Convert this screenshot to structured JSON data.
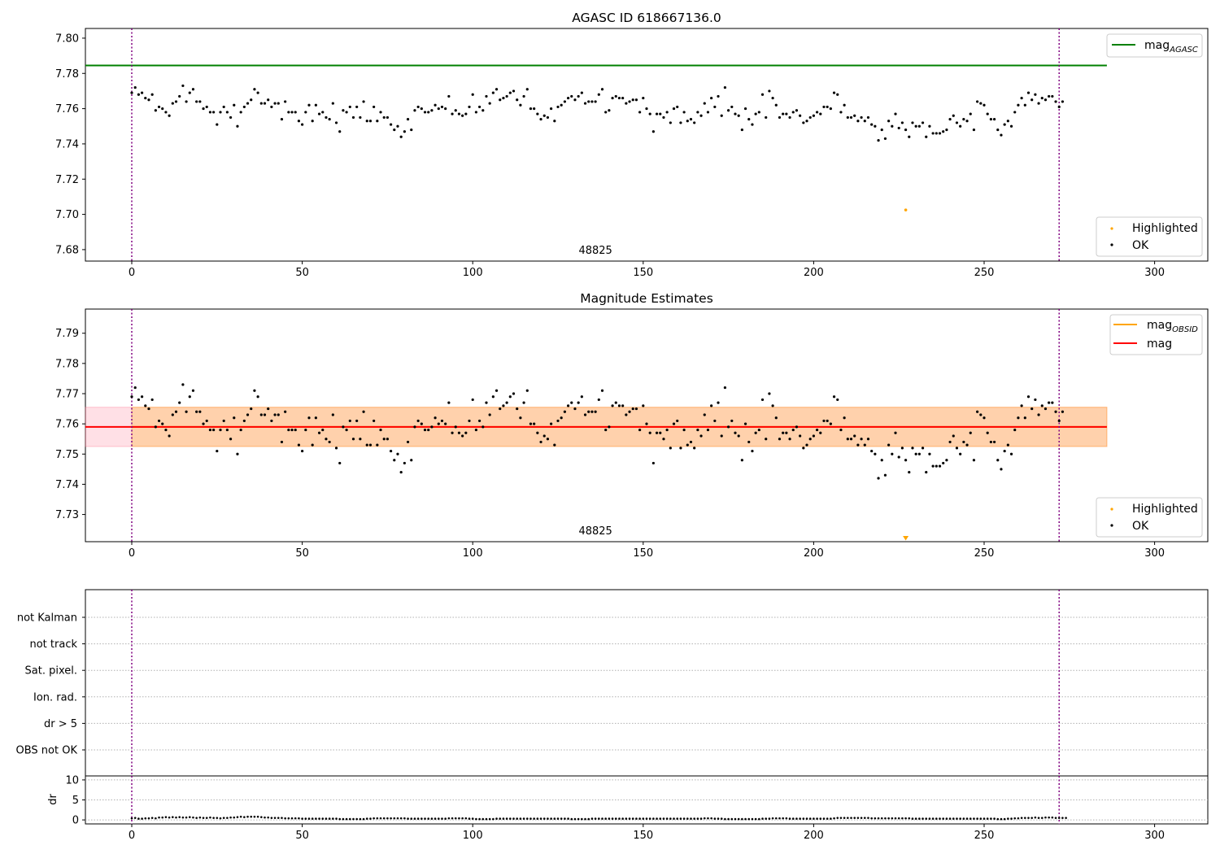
{
  "colors": {
    "agasc_line": "#008000",
    "obsid_line": "#ffa500",
    "mag_line": "#ff0000",
    "obsid_band": "#ffa500",
    "mag_band": "#ff6680",
    "highlighted": "#ffa500",
    "ok": "#000000",
    "obs_boundary": "#800080",
    "flag_grid": "#b0b0b0"
  },
  "chart_data": [
    {
      "type": "scatter",
      "title": "AGASC ID 618667136.0",
      "xlim": [
        -13.6,
        315.6
      ],
      "ylim": [
        7.6735,
        7.8055
      ],
      "xticks": [
        0,
        50,
        100,
        150,
        200,
        250,
        300
      ],
      "yticks": [
        "7.68",
        "7.70",
        "7.72",
        "7.74",
        "7.76",
        "7.78",
        "7.80"
      ],
      "obs_boundaries": [
        0,
        272
      ],
      "obsid_label": "48825",
      "obsid_label_x": 136,
      "lines": [
        {
          "name": "mag_AGASC",
          "y": 7.7845,
          "x_range": [
            -13.6,
            286
          ],
          "color_key": "agasc_line"
        }
      ],
      "legend_lines": [
        {
          "base": "mag",
          "sub": "AGASC",
          "color_key": "agasc_line"
        }
      ],
      "legend_points": [
        {
          "label": "Highlighted",
          "color_key": "highlighted"
        },
        {
          "label": "OK",
          "color_key": "ok"
        }
      ],
      "highlighted_points": [
        {
          "x": 227,
          "y": 7.7025
        }
      ],
      "ok_series_ref": "mag_points"
    },
    {
      "type": "scatter",
      "title": "Magnitude Estimates",
      "xlim": [
        -13.6,
        315.6
      ],
      "ylim": [
        7.721,
        7.798
      ],
      "xticks": [
        0,
        50,
        100,
        150,
        200,
        250,
        300
      ],
      "yticks": [
        "7.73",
        "7.74",
        "7.75",
        "7.76",
        "7.77",
        "7.78",
        "7.79"
      ],
      "obs_boundaries": [
        0,
        272
      ],
      "obsid_label": "48825",
      "obsid_label_x": 136,
      "bands": [
        {
          "name": "mag band",
          "y0": 7.7525,
          "y1": 7.7655,
          "x_range": [
            -13.6,
            286
          ],
          "color_key": "mag_band",
          "opacity": 0.2
        },
        {
          "name": "mag_OBSID band",
          "y0": 7.7525,
          "y1": 7.7655,
          "x_range": [
            0,
            286
          ],
          "color_key": "obsid_band",
          "opacity": 0.25
        }
      ],
      "lines": [
        {
          "name": "mag_OBSID",
          "y": 7.759,
          "x_range": [
            0,
            286
          ],
          "color_key": "obsid_line"
        },
        {
          "name": "mag",
          "y": 7.759,
          "x_range": [
            -13.6,
            286
          ],
          "color_key": "mag_line"
        }
      ],
      "legend_lines": [
        {
          "base": "mag",
          "sub": "OBSID",
          "color_key": "obsid_line"
        },
        {
          "base": "mag",
          "sub": "",
          "color_key": "mag_line"
        }
      ],
      "legend_points": [
        {
          "label": "Highlighted",
          "color_key": "highlighted"
        },
        {
          "label": "OK",
          "color_key": "ok"
        }
      ],
      "highlighted_markers": [
        {
          "x": 227,
          "marker": "triangle-down",
          "at": "bottom-edge"
        }
      ],
      "ok_series_ref": "mag_points"
    },
    {
      "type": "categorical-flags",
      "title": "",
      "xlim": [
        -13.6,
        315.6
      ],
      "flag_categories": [
        "not Kalman",
        "not track",
        "Sat. pixel.",
        "Ion. rad.",
        "dr > 5",
        "OBS not OK"
      ],
      "flagged_points": [],
      "obs_boundaries": [
        0,
        272
      ]
    },
    {
      "type": "scatter",
      "title": "",
      "xlim": [
        -13.6,
        315.6
      ],
      "ylim": [
        -1,
        11
      ],
      "xticks": [
        0,
        50,
        100,
        150,
        200,
        250,
        300
      ],
      "yticks": [
        "0",
        "5",
        "10"
      ],
      "ylabel": "dr",
      "obs_boundaries": [
        0,
        272
      ],
      "dr_values": [
        0.4,
        0.5,
        0.3,
        0.3,
        0.4,
        0.4,
        0.5,
        0.4,
        0.6,
        0.6,
        0.7,
        0.6,
        0.7,
        0.6,
        0.7,
        0.6,
        0.6,
        0.7,
        0.6,
        0.5,
        0.6,
        0.5,
        0.5,
        0.6,
        0.5,
        0.5,
        0.4,
        0.5,
        0.5,
        0.6,
        0.6,
        0.7,
        0.8,
        0.7,
        0.8,
        0.8,
        0.8,
        0.8,
        0.7,
        0.6,
        0.6,
        0.5,
        0.5,
        0.5,
        0.5,
        0.4,
        0.4,
        0.4,
        0.4,
        0.4,
        0.3,
        0.3,
        0.3,
        0.3,
        0.3,
        0.3,
        0.3,
        0.3,
        0.3,
        0.3,
        0.3,
        0.2,
        0.2,
        0.2,
        0.2,
        0.2,
        0.2,
        0.2,
        0.2,
        0.3,
        0.3,
        0.4,
        0.4,
        0.4,
        0.4,
        0.4,
        0.4,
        0.4,
        0.4,
        0.4,
        0.4,
        0.3,
        0.3,
        0.3,
        0.3,
        0.3,
        0.3,
        0.3,
        0.3,
        0.3,
        0.3,
        0.3,
        0.3,
        0.4,
        0.4,
        0.4,
        0.4,
        0.4,
        0.4,
        0.3,
        0.3,
        0.2,
        0.2,
        0.2,
        0.2,
        0.2,
        0.2,
        0.3,
        0.3,
        0.3,
        0.3,
        0.3,
        0.3,
        0.3,
        0.3,
        0.3,
        0.3,
        0.3,
        0.3,
        0.3,
        0.3,
        0.3,
        0.3,
        0.3,
        0.3,
        0.3,
        0.3,
        0.3,
        0.3,
        0.2,
        0.2,
        0.2,
        0.2,
        0.2,
        0.2,
        0.3,
        0.3,
        0.3,
        0.3,
        0.3,
        0.3,
        0.3,
        0.3,
        0.3,
        0.3,
        0.3,
        0.3,
        0.3,
        0.3,
        0.3,
        0.3,
        0.3,
        0.3,
        0.3,
        0.3,
        0.3,
        0.3,
        0.3,
        0.3,
        0.3,
        0.3,
        0.3,
        0.3,
        0.3,
        0.3,
        0.3,
        0.3,
        0.3,
        0.4,
        0.4,
        0.4,
        0.3,
        0.3,
        0.3,
        0.2,
        0.2,
        0.2,
        0.2,
        0.2,
        0.2,
        0.2,
        0.2,
        0.2,
        0.2,
        0.2,
        0.3,
        0.3,
        0.3,
        0.4,
        0.4,
        0.4,
        0.4,
        0.4,
        0.3,
        0.3,
        0.3,
        0.3,
        0.3,
        0.3,
        0.3,
        0.3,
        0.3,
        0.3,
        0.3,
        0.3,
        0.3,
        0.4,
        0.5,
        0.5,
        0.5,
        0.5,
        0.5,
        0.5,
        0.5,
        0.5,
        0.5,
        0.5,
        0.4,
        0.4,
        0.4,
        0.4,
        0.4,
        0.4,
        0.4,
        0.4,
        0.4,
        0.4,
        0.4,
        0.4,
        0.3,
        0.3,
        0.3,
        0.3,
        0.3,
        0.3,
        0.3,
        0.3,
        0.3,
        0.3,
        0.3,
        0.3,
        0.3,
        0.3,
        0.3,
        0.3,
        0.3,
        0.3,
        0.3,
        0.3,
        0.3,
        0.3,
        0.3,
        0.3,
        0.3,
        0.2,
        0.2,
        0.2,
        0.3,
        0.3,
        0.4,
        0.4,
        0.5,
        0.5,
        0.5,
        0.5,
        0.6,
        0.5,
        0.5,
        0.6,
        0.6,
        0.6,
        0.5,
        0.5,
        0.5,
        0.5
      ]
    }
  ],
  "mag_points": {
    "x_start": 0,
    "x_step": 1,
    "y": [
      7.769,
      7.772,
      7.768,
      7.769,
      7.766,
      7.765,
      7.768,
      7.759,
      7.761,
      7.76,
      7.758,
      7.756,
      7.763,
      7.764,
      7.767,
      7.773,
      7.764,
      7.769,
      7.771,
      7.764,
      7.764,
      7.76,
      7.761,
      7.758,
      7.758,
      7.751,
      7.758,
      7.761,
      7.758,
      7.755,
      7.762,
      7.75,
      7.758,
      7.761,
      7.763,
      7.765,
      7.771,
      7.769,
      7.763,
      7.763,
      7.765,
      7.761,
      7.763,
      7.763,
      7.754,
      7.764,
      7.758,
      7.758,
      7.758,
      7.753,
      7.751,
      7.758,
      7.762,
      7.753,
      7.762,
      7.757,
      7.758,
      7.755,
      7.754,
      7.763,
      7.752,
      7.747,
      7.759,
      7.758,
      7.761,
      7.755,
      7.761,
      7.755,
      7.764,
      7.753,
      7.753,
      7.761,
      7.753,
      7.758,
      7.755,
      7.755,
      7.751,
      7.748,
      7.75,
      7.744,
      7.747,
      7.754,
      7.748,
      7.759,
      7.761,
      7.76,
      7.758,
      7.758,
      7.759,
      7.762,
      7.76,
      7.761,
      7.76,
      7.767,
      7.757,
      7.759,
      7.757,
      7.756,
      7.757,
      7.761,
      7.768,
      7.758,
      7.761,
      7.759,
      7.767,
      7.763,
      7.769,
      7.771,
      7.765,
      7.766,
      7.767,
      7.769,
      7.77,
      7.765,
      7.762,
      7.767,
      7.771,
      7.76,
      7.76,
      7.757,
      7.754,
      7.756,
      7.755,
      7.76,
      7.753,
      7.761,
      7.762,
      7.764,
      7.766,
      7.767,
      7.765,
      7.767,
      7.769,
      7.763,
      7.764,
      7.764,
      7.764,
      7.768,
      7.771,
      7.758,
      7.759,
      7.766,
      7.767,
      7.766,
      7.766,
      7.763,
      7.764,
      7.765,
      7.765,
      7.758,
      7.766,
      7.76,
      7.757,
      7.747,
      7.757,
      7.757,
      7.755,
      7.758,
      7.752,
      7.76,
      7.761,
      7.752,
      7.758,
      7.753,
      7.754,
      7.752,
      7.758,
      7.756,
      7.763,
      7.758,
      7.766,
      7.761,
      7.767,
      7.756,
      7.772,
      7.759,
      7.761,
      7.757,
      7.756,
      7.748,
      7.76,
      7.754,
      7.751,
      7.757,
      7.758,
      7.768,
      7.755,
      7.77,
      7.766,
      7.762,
      7.755,
      7.757,
      7.757,
      7.755,
      7.758,
      7.759,
      7.756,
      7.752,
      7.753,
      7.755,
      7.756,
      7.758,
      7.757,
      7.761,
      7.761,
      7.76,
      7.769,
      7.768,
      7.758,
      7.762,
      7.755,
      7.755,
      7.756,
      7.753,
      7.755,
      7.753,
      7.755,
      7.751,
      7.75,
      7.742,
      7.748,
      7.743,
      7.753,
      7.75,
      7.757,
      7.749,
      7.752,
      7.748,
      7.744,
      7.752,
      7.75,
      7.75,
      7.752,
      7.744,
      7.75,
      7.746,
      7.746,
      7.746,
      7.747,
      7.748,
      7.754,
      7.756,
      7.752,
      7.75,
      7.754,
      7.753,
      7.757,
      7.748,
      7.764,
      7.763,
      7.762,
      7.757,
      7.754,
      7.754,
      7.748,
      7.745,
      7.751,
      7.753,
      7.75,
      7.758,
      7.762,
      7.766,
      7.762,
      7.769,
      7.765,
      7.768,
      7.763,
      7.766,
      7.765,
      7.767,
      7.767,
      7.764,
      7.761,
      7.764
    ]
  }
}
